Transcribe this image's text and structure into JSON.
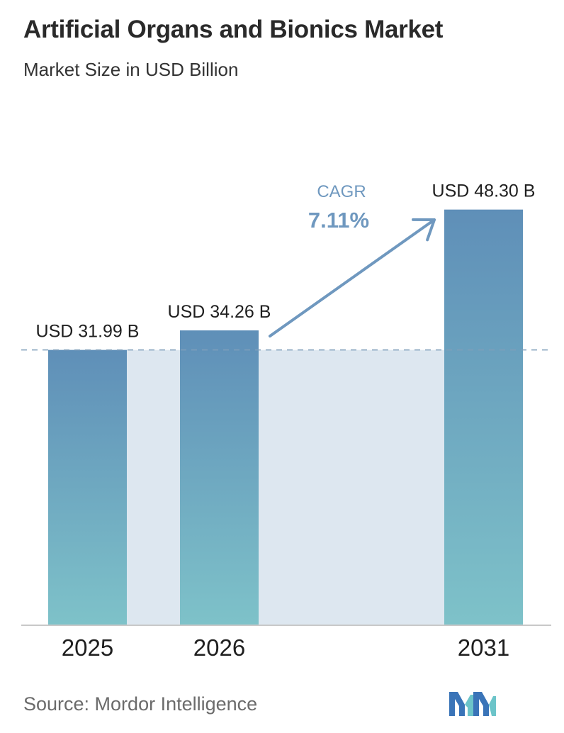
{
  "header": {
    "title": "Artificial Organs and Bionics Market",
    "subtitle": "Market Size in USD Billion"
  },
  "chart_data": {
    "type": "bar",
    "categories": [
      "2025",
      "2026",
      "2031"
    ],
    "values": [
      31.99,
      34.26,
      48.3
    ],
    "data_labels": [
      "USD 31.99 B",
      "USD 34.26 B",
      "USD 48.30 B"
    ],
    "annotation": {
      "label": "CAGR",
      "value": "7.11%"
    },
    "reference_line": 31.99,
    "colors": {
      "bar_top": "#5f8fb8",
      "bar_bottom": "#7ec2c9",
      "band": "#dde7f0",
      "accent": "#6f98bf",
      "dashed_line": "#7f9fba",
      "axis": "#c8c8c8"
    }
  },
  "footer": {
    "source": "Source:  Mordor Intelligence",
    "logo_icon": "mordor-intelligence-logo-icon"
  }
}
